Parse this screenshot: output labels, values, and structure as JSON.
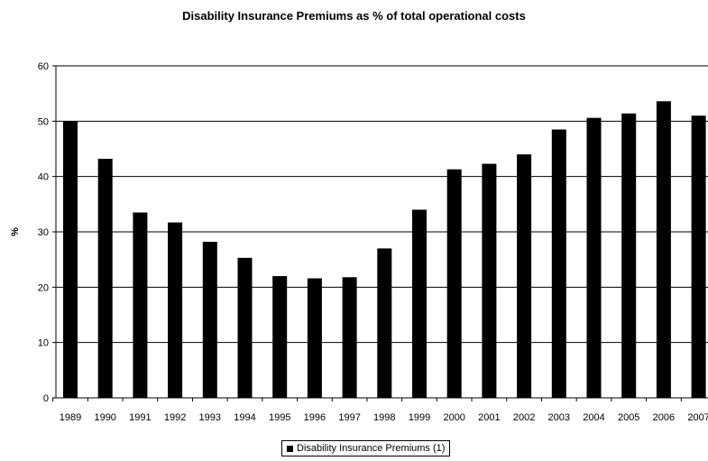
{
  "chart_data": {
    "type": "bar",
    "title": "Disability Insurance Premiums as % of total operational costs",
    "ylabel": "%",
    "xlabel": "",
    "ylim": [
      0,
      60
    ],
    "yticks": [
      0,
      10,
      20,
      30,
      40,
      50,
      60
    ],
    "grid": true,
    "legend_position": "bottom",
    "categories": [
      "1989",
      "1990",
      "1991",
      "1992",
      "1993",
      "1994",
      "1995",
      "1996",
      "1997",
      "1998",
      "1999",
      "2000",
      "2001",
      "2002",
      "2003",
      "2004",
      "2005",
      "2006",
      "2007"
    ],
    "series": [
      {
        "name": "Disability Insurance Premiums (1)",
        "color": "#000000",
        "values": [
          50,
          43.2,
          33.5,
          31.7,
          28.2,
          25.3,
          22,
          21.6,
          21.8,
          27,
          34,
          41.3,
          42.3,
          44,
          48.5,
          50.6,
          51.4,
          53.6,
          51
        ]
      }
    ]
  }
}
